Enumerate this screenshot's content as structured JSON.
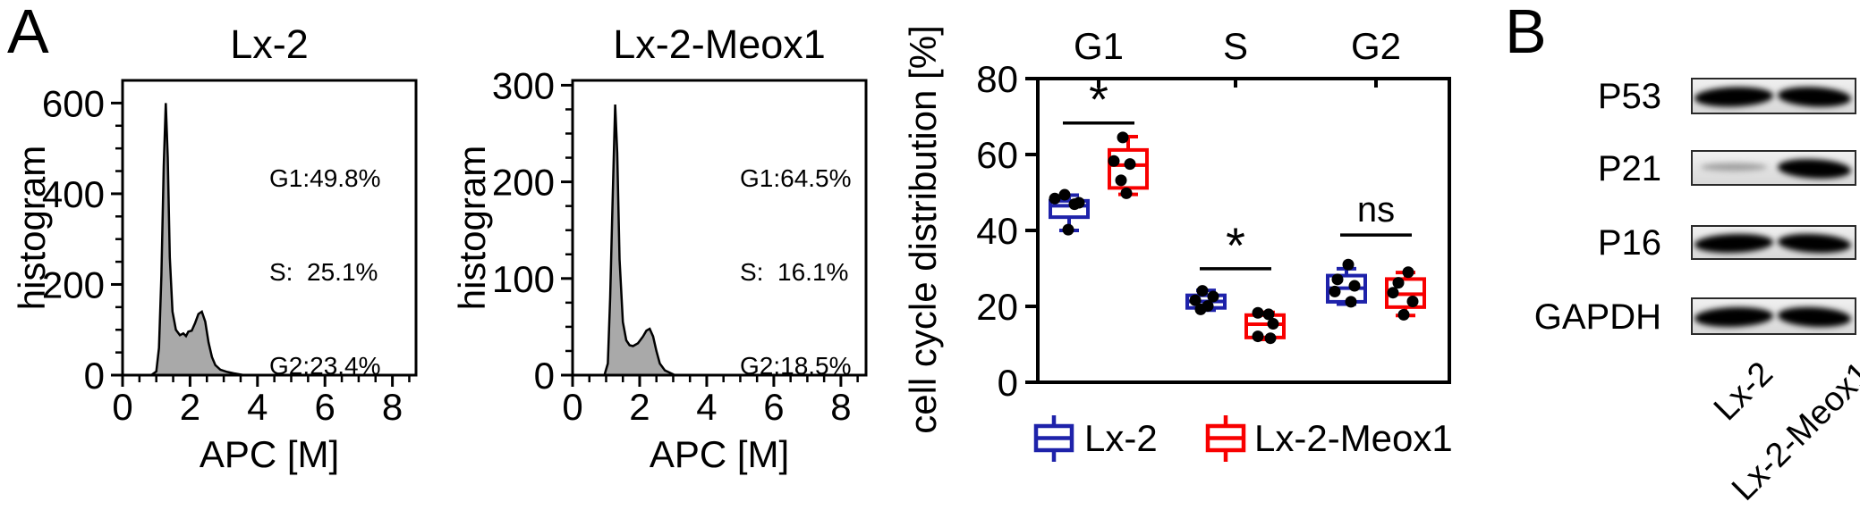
{
  "panels": {
    "a_label": "A",
    "b_label": "B"
  },
  "colors": {
    "lx2_blue": "#1e22aa",
    "meox1_red": "#f80000",
    "hist_fill": "#a9a9a9",
    "hist_stroke": "#000000",
    "axis": "#000000",
    "point_black": "#000000"
  },
  "chart_data": [
    {
      "id": "hist-lx2",
      "type": "area",
      "title": "Lx-2",
      "xlabel": "APC [M]",
      "ylabel": "histogram",
      "xlim": [
        0,
        8.7
      ],
      "ylim": [
        0,
        650
      ],
      "xticks": [
        0,
        2,
        4,
        6,
        8
      ],
      "yticks": [
        0,
        200,
        400,
        600
      ],
      "x_minor_step": 0.5,
      "y_minor_step": 50,
      "grid": false,
      "annotation": [
        "G1:49.8%",
        "S:  25.1%",
        "G2:23.4%"
      ],
      "curve": [
        [
          0.85,
          0
        ],
        [
          1.0,
          8
        ],
        [
          1.08,
          60
        ],
        [
          1.15,
          220
        ],
        [
          1.22,
          460
        ],
        [
          1.28,
          600
        ],
        [
          1.34,
          480
        ],
        [
          1.4,
          260
        ],
        [
          1.48,
          140
        ],
        [
          1.58,
          100
        ],
        [
          1.7,
          88
        ],
        [
          1.8,
          92
        ],
        [
          1.88,
          86
        ],
        [
          1.95,
          96
        ],
        [
          2.05,
          98
        ],
        [
          2.15,
          115
        ],
        [
          2.25,
          135
        ],
        [
          2.35,
          140
        ],
        [
          2.45,
          118
        ],
        [
          2.55,
          72
        ],
        [
          2.65,
          40
        ],
        [
          2.75,
          22
        ],
        [
          2.9,
          12
        ],
        [
          3.1,
          7
        ],
        [
          3.3,
          4
        ],
        [
          3.6,
          0
        ]
      ]
    },
    {
      "id": "hist-meox1",
      "type": "area",
      "title": "Lx-2-Meox1",
      "xlabel": "APC [M]",
      "ylabel": "histogram",
      "xlim": [
        0,
        8.75
      ],
      "ylim": [
        0,
        305
      ],
      "xticks": [
        0,
        2,
        4,
        6,
        8
      ],
      "yticks": [
        0,
        100,
        200,
        300
      ],
      "x_minor_step": 0.5,
      "y_minor_step": 25,
      "grid": false,
      "annotation": [
        "G1:64.5%",
        "S:  16.1%",
        "G2:18.5%"
      ],
      "curve": [
        [
          0.95,
          0
        ],
        [
          1.05,
          12
        ],
        [
          1.12,
          80
        ],
        [
          1.2,
          190
        ],
        [
          1.27,
          280
        ],
        [
          1.33,
          230
        ],
        [
          1.4,
          120
        ],
        [
          1.5,
          55
        ],
        [
          1.6,
          36
        ],
        [
          1.7,
          31
        ],
        [
          1.8,
          30
        ],
        [
          1.95,
          33
        ],
        [
          2.1,
          40
        ],
        [
          2.2,
          46
        ],
        [
          2.3,
          48
        ],
        [
          2.4,
          40
        ],
        [
          2.5,
          25
        ],
        [
          2.6,
          12
        ],
        [
          2.75,
          5
        ],
        [
          3.05,
          0
        ]
      ]
    },
    {
      "id": "cell-cycle-box",
      "type": "box",
      "ylabel": "cell cycle distribution [%]",
      "ylim": [
        0,
        80
      ],
      "yticks": [
        0,
        20,
        40,
        60,
        80
      ],
      "grid": false,
      "categories": [
        "G1",
        "S",
        "G2"
      ],
      "series": [
        {
          "name": "Lx-2",
          "color": "#1e22aa",
          "boxes": [
            {
              "lo": 40,
              "q1": 43.5,
              "median": 46.5,
              "q3": 47.8,
              "hi": 49.3,
              "points": [
                [
                  49.4,
                  -5
                ],
                [
                  48.4,
                  -16
                ],
                [
                  47.3,
                  11
                ],
                [
                  46.9,
                  6
                ],
                [
                  40.2,
                  -1
                ]
              ]
            },
            {
              "lo": 19,
              "q1": 19.6,
              "median": 21.3,
              "q3": 22.9,
              "hi": 24.2,
              "points": [
                [
                  24.1,
                  -4
                ],
                [
                  22.6,
                  8
                ],
                [
                  21.6,
                  -12
                ],
                [
                  20.1,
                  2
                ],
                [
                  19.2,
                  -6
                ]
              ]
            },
            {
              "lo": 20.6,
              "q1": 21.2,
              "median": 24.8,
              "q3": 28.1,
              "hi": 29.9,
              "points": [
                [
                  31.0,
                  2
                ],
                [
                  27.1,
                  -10
                ],
                [
                  25.4,
                  9
                ],
                [
                  23.9,
                  -13
                ],
                [
                  21.2,
                  5
                ]
              ]
            }
          ]
        },
        {
          "name": "Lx-2-Meox1",
          "color": "#f80000",
          "boxes": [
            {
              "lo": 49.5,
              "q1": 51.2,
              "median": 57.2,
              "q3": 61.2,
              "hi": 64.7,
              "points": [
                [
                  64.5,
                  -6
                ],
                [
                  58.3,
                  -16
                ],
                [
                  57.5,
                  2
                ],
                [
                  53.2,
                  -8
                ],
                [
                  49.8,
                  -2
                ]
              ]
            },
            {
              "lo": 11.3,
              "q1": 11.8,
              "median": 15.3,
              "q3": 17.7,
              "hi": 18.4,
              "points": [
                [
                  18.3,
                  -8
                ],
                [
                  17.9,
                  4
                ],
                [
                  15.4,
                  9
                ],
                [
                  12.1,
                  -8
                ],
                [
                  11.6,
                  6
                ]
              ]
            },
            {
              "lo": 17.6,
              "q1": 19.8,
              "median": 23.2,
              "q3": 27.2,
              "hi": 28.9,
              "points": [
                [
                  29.0,
                  3
                ],
                [
                  26.2,
                  -8
                ],
                [
                  23.6,
                  -14
                ],
                [
                  21.3,
                  8
                ],
                [
                  17.8,
                  -2
                ]
              ]
            }
          ]
        }
      ],
      "significance": [
        {
          "category": "G1",
          "label": "*",
          "line_y": 68.3
        },
        {
          "category": "S",
          "label": "*",
          "line_y": 29.9
        },
        {
          "category": "G2",
          "label": "ns",
          "line_y": 38.8
        }
      ],
      "legend": [
        "Lx-2",
        "Lx-2-Meox1"
      ]
    }
  ],
  "westernblot": {
    "rows": [
      {
        "protein": "P53",
        "bands": [
          "strong",
          "strong"
        ]
      },
      {
        "protein": "P21",
        "bands": [
          "faint",
          "strong"
        ]
      },
      {
        "protein": "P16",
        "bands": [
          "strong",
          "strong"
        ]
      },
      {
        "protein": "GAPDH",
        "bands": [
          "strong",
          "strong"
        ]
      }
    ],
    "lanes": [
      "Lx-2",
      "Lx-2-Meox1"
    ]
  }
}
